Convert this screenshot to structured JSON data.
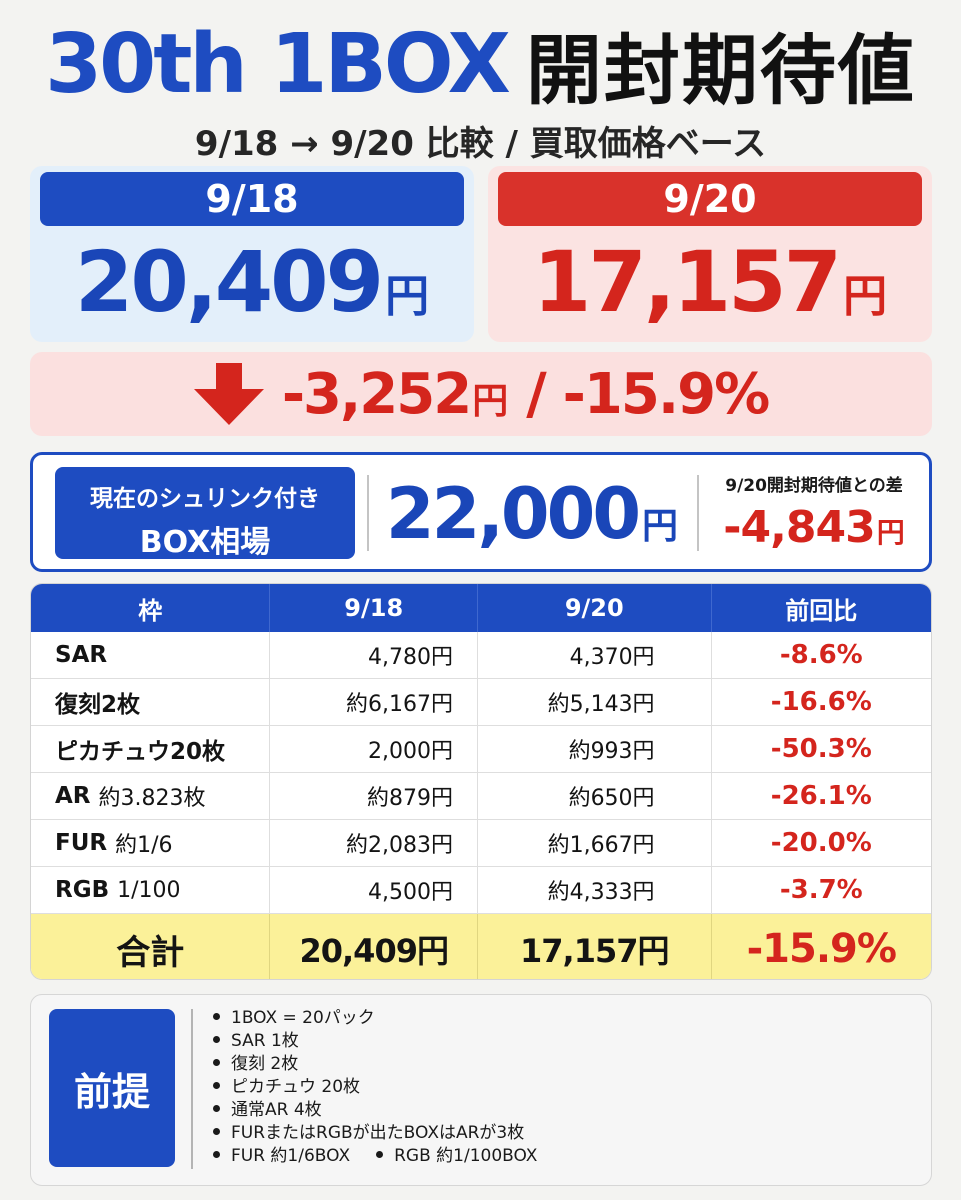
{
  "title": {
    "en": "30th 1BOX",
    "jp": "開封期待値"
  },
  "subtitle": "9/18 → 9/20 比較 / 買取価格ベース",
  "cards": [
    {
      "date": "9/18",
      "price": "20,409",
      "unit": "円",
      "color": "#1e4cc1"
    },
    {
      "date": "9/20",
      "price": "17,157",
      "unit": "円",
      "color": "#d9322b"
    }
  ],
  "diff": {
    "icon": "arrow-down-icon",
    "amount": "-3,252",
    "unit": "円",
    "sep": "/",
    "percent": "-15.9%"
  },
  "market": {
    "label_line1": "現在のシュリンク付き",
    "label_line2": "BOX相場",
    "price": "22,000",
    "unit": "円",
    "diff_label": "9/20開封期待値との差",
    "diff_value": "-4,843",
    "diff_unit": "円"
  },
  "table": {
    "headers": [
      "枠",
      "9/18",
      "9/20",
      "前回比"
    ],
    "rows": [
      {
        "name": "SAR",
        "sub": "",
        "v1": "4,780円",
        "v2": "4,370円",
        "change": "-8.6%"
      },
      {
        "name": "復刻2枚",
        "sub": "",
        "v1": "約6,167円",
        "v2": "約5,143円",
        "change": "-16.6%"
      },
      {
        "name": "ピカチュウ20枚",
        "sub": "",
        "v1": "2,000円",
        "v2": "約993円",
        "change": "-50.3%"
      },
      {
        "name": "AR",
        "sub": "約3.823枚",
        "v1": "約879円",
        "v2": "約650円",
        "change": "-26.1%"
      },
      {
        "name": "FUR",
        "sub": "約1/6",
        "v1": "約2,083円",
        "v2": "約1,667円",
        "change": "-20.0%"
      },
      {
        "name": "RGB",
        "sub": "1/100",
        "v1": "4,500円",
        "v2": "約4,333円",
        "change": "-3.7%"
      }
    ],
    "total": {
      "label": "合計",
      "v1": "20,409円",
      "v2": "17,157円",
      "change": "-15.9%"
    }
  },
  "notes": {
    "label": "前提",
    "items": [
      "1BOX = 20パック",
      "SAR 1枚",
      "復刻 2枚",
      "ピカチュウ 20枚",
      "通常AR 4枚",
      "FURまたはRGBが出たBOXはARが3枚"
    ],
    "last_items": [
      "FUR 約1/6BOX",
      "RGB 約1/100BOX"
    ]
  }
}
